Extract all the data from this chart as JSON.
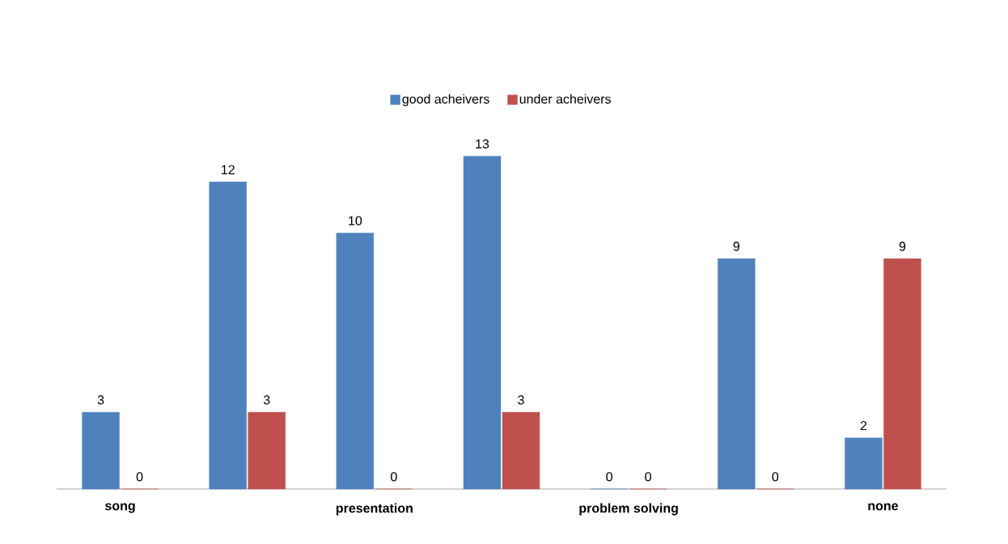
{
  "chart_data": {
    "type": "bar",
    "categories": [
      "song",
      null,
      "presentation",
      null,
      "problem solving",
      null,
      "none"
    ],
    "series": [
      {
        "name": "good acheivers",
        "color": "#4f81bd",
        "values": [
          3,
          12,
          10,
          13,
          0,
          9,
          2
        ]
      },
      {
        "name": "under acheivers",
        "color": "#c0504d",
        "values": [
          0,
          3,
          0,
          3,
          0,
          0,
          9
        ]
      }
    ],
    "data_labels": true,
    "legend": "top"
  }
}
